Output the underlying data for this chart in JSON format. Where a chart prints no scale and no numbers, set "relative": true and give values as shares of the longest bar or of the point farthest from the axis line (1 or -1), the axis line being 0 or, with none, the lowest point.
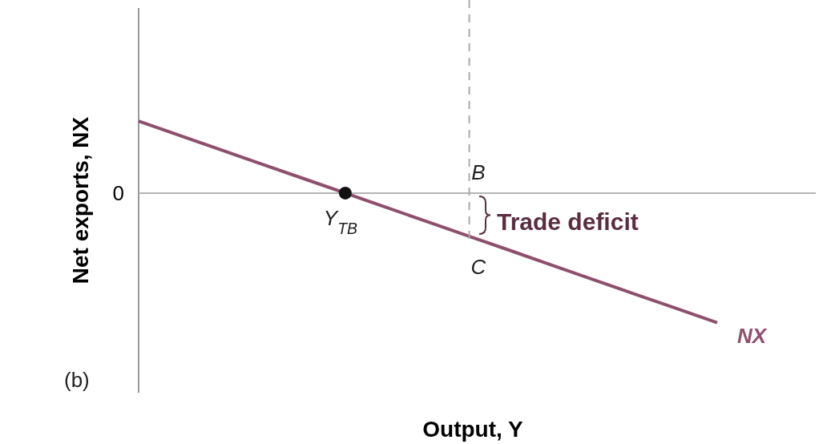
{
  "chart_data": {
    "type": "line",
    "relative": true,
    "xlabel": "Output, Y",
    "ylabel": "Net exports, NX",
    "categories": [
      null,
      null,
      null,
      null,
      null,
      null,
      null,
      null,
      null,
      null,
      null,
      null,
      null,
      null,
      null
    ],
    "series": [
      {
        "name": "NX",
        "color": "#8e4f6e",
        "values": [
          0.556,
          0.444,
          0.333,
          0.222,
          0.111,
          0,
          -0.111,
          -0.222,
          -0.333,
          -0.444,
          -0.556,
          -0.667,
          -0.778,
          -0.889,
          -1
        ],
        "marker": "none",
        "line_style": "solid"
      }
    ],
    "ref_lines": [
      {
        "axis": "y",
        "value": 0,
        "label": "0",
        "color": "#b5b5b5",
        "line_style": "solid"
      }
    ],
    "annotations": [
      "B",
      "C",
      "Y$_{TB}$",
      "Trade deficit",
      "(b)"
    ]
  }
}
